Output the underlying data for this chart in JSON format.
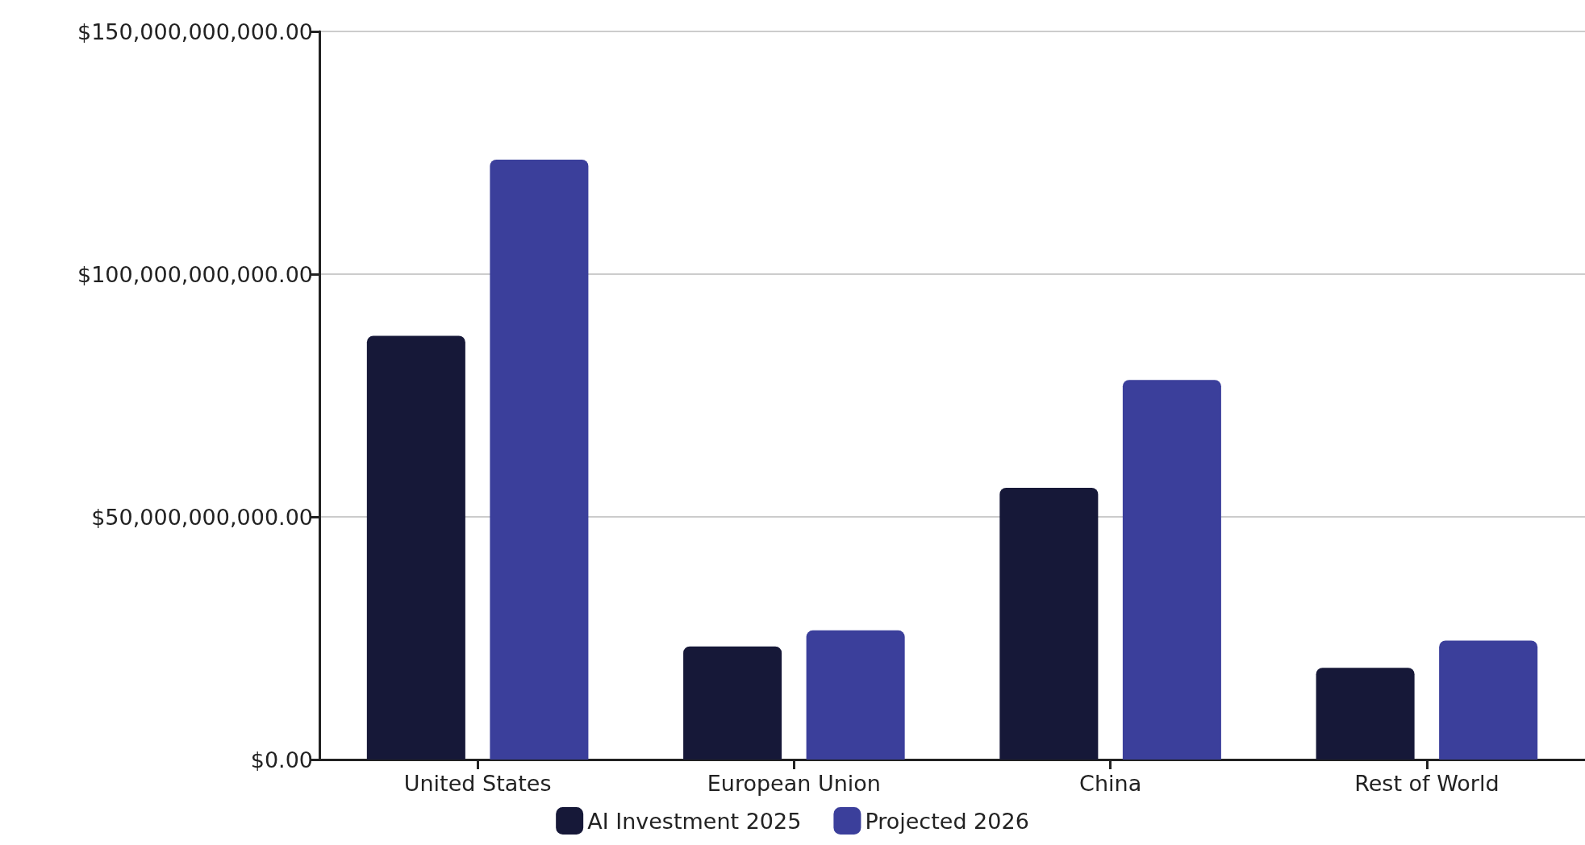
{
  "chart_data": {
    "type": "bar",
    "categories": [
      "United States",
      "European Union",
      "China",
      "Rest of World"
    ],
    "series": [
      {
        "name": "AI Investment 2025",
        "color": "#161838",
        "values": [
          87300000000,
          23300000000,
          56000000000,
          18900000000
        ]
      },
      {
        "name": "Projected 2026",
        "color": "#3b3f9b",
        "values": [
          123600000000,
          26600000000,
          78200000000,
          24500000000
        ]
      }
    ],
    "ylim": [
      0,
      150000000000
    ],
    "yticks": [
      {
        "value": 0,
        "label": "$0.00"
      },
      {
        "value": 50000000000,
        "label": "$50,000,000,000.00"
      },
      {
        "value": 100000000000,
        "label": "$100,000,000,000.00"
      },
      {
        "value": 150000000000,
        "label": "$150,000,000,000.00"
      }
    ],
    "grid": "y",
    "legend": "bottom"
  }
}
